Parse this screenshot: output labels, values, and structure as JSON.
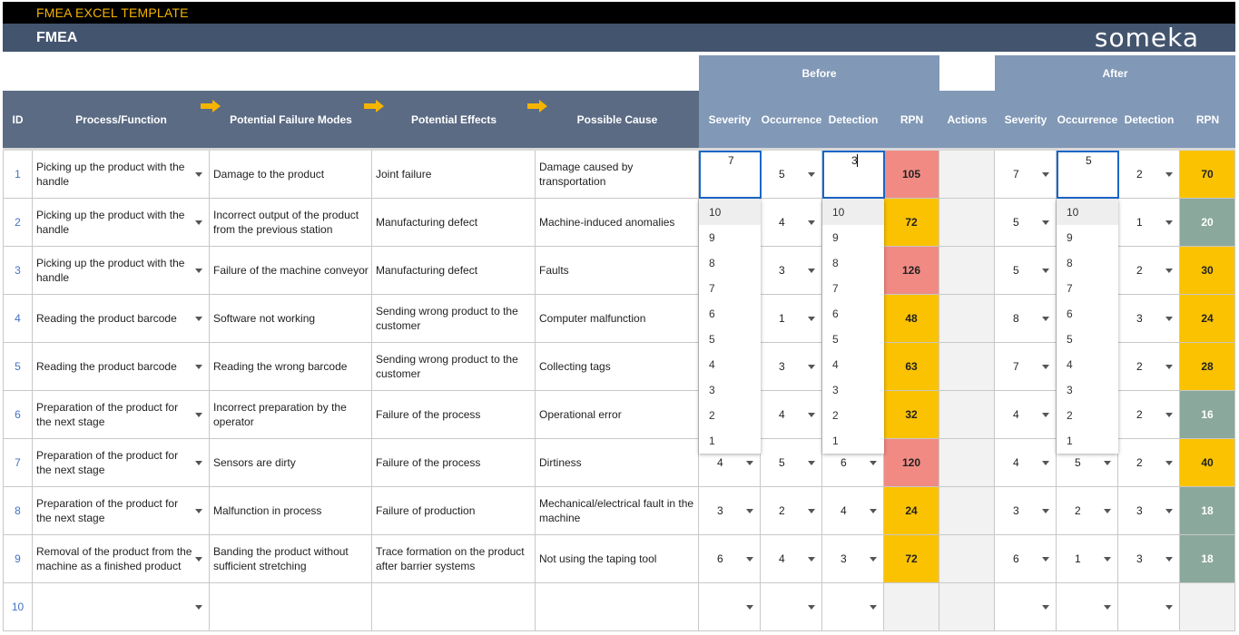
{
  "app": {
    "title": "FMEA EXCEL TEMPLATE",
    "sheet_title": "FMEA",
    "logo": "someka"
  },
  "headers": {
    "group_before": "Before",
    "group_after": "After",
    "id": "ID",
    "process": "Process/Function",
    "failure": "Potential Failure Modes",
    "effects": "Potential Effects",
    "cause": "Possible Cause",
    "severity": "Severity",
    "occurrence": "Occurrence",
    "detection": "Detection",
    "rpn": "RPN",
    "actions": "Actions"
  },
  "colors": {
    "rpn_red": "#f08a83",
    "rpn_yellow": "#fac200",
    "rpn_green": "#8aa89b",
    "header_dark": "#5b6b84",
    "header_light": "#8198b6"
  },
  "icons": {
    "arrow": "arrow-right-icon",
    "dropdown": "chevron-down-icon"
  },
  "rows": [
    {
      "id": "1",
      "process": "Picking up the product with the handle",
      "failure": "Damage to the product",
      "effects": "Joint failure",
      "cause": "Damage caused by transportation",
      "b_sev": "7",
      "b_occ": "5",
      "b_det": "3",
      "b_rpn": "105",
      "b_color": "red",
      "a_sev": "7",
      "a_occ": "5",
      "a_det": "2",
      "a_rpn": "70",
      "a_color": "yellow"
    },
    {
      "id": "2",
      "process": "Picking up the product with the handle",
      "failure": "Incorrect output of the product from the previous station",
      "effects": "Manufacturing defect",
      "cause": "Machine-induced anomalies",
      "b_sev": "",
      "b_occ": "4",
      "b_det": "",
      "b_rpn": "72",
      "b_color": "yellow",
      "a_sev": "5",
      "a_occ": "",
      "a_det": "1",
      "a_rpn": "20",
      "a_color": "green"
    },
    {
      "id": "3",
      "process": "Picking up the product with the handle",
      "failure": "Failure of the machine conveyor",
      "effects": "Manufacturing defect",
      "cause": "Faults",
      "b_sev": "",
      "b_occ": "3",
      "b_det": "",
      "b_rpn": "126",
      "b_color": "red",
      "a_sev": "5",
      "a_occ": "",
      "a_det": "2",
      "a_rpn": "30",
      "a_color": "yellow"
    },
    {
      "id": "4",
      "process": "Reading the product barcode",
      "failure": "Software not working",
      "effects": "Sending wrong product to the customer",
      "cause": "Computer malfunction",
      "b_sev": "",
      "b_occ": "1",
      "b_det": "",
      "b_rpn": "48",
      "b_color": "yellow",
      "a_sev": "8",
      "a_occ": "",
      "a_det": "3",
      "a_rpn": "24",
      "a_color": "yellow"
    },
    {
      "id": "5",
      "process": "Reading the product barcode",
      "failure": "Reading the wrong barcode",
      "effects": "Sending wrong product to the customer",
      "cause": "Collecting tags",
      "b_sev": "",
      "b_occ": "3",
      "b_det": "",
      "b_rpn": "63",
      "b_color": "yellow",
      "a_sev": "7",
      "a_occ": "",
      "a_det": "2",
      "a_rpn": "28",
      "a_color": "yellow"
    },
    {
      "id": "6",
      "process": "Preparation of the product for the next stage",
      "failure": "Incorrect preparation by the operator",
      "effects": "Failure of the process",
      "cause": "Operational error",
      "b_sev": "",
      "b_occ": "4",
      "b_det": "",
      "b_rpn": "32",
      "b_color": "yellow",
      "a_sev": "4",
      "a_occ": "",
      "a_det": "2",
      "a_rpn": "16",
      "a_color": "green"
    },
    {
      "id": "7",
      "process": "Preparation of the product for the next stage",
      "failure": "Sensors are dirty",
      "effects": "Failure of the process",
      "cause": "Dirtiness",
      "b_sev": "4",
      "b_occ": "5",
      "b_det": "6",
      "b_rpn": "120",
      "b_color": "red",
      "a_sev": "4",
      "a_occ": "5",
      "a_det": "2",
      "a_rpn": "40",
      "a_color": "yellow"
    },
    {
      "id": "8",
      "process": "Preparation of the product for the next stage",
      "failure": "Malfunction in process",
      "effects": "Failure of production",
      "cause": "Mechanical/electrical fault in the machine",
      "b_sev": "3",
      "b_occ": "2",
      "b_det": "4",
      "b_rpn": "24",
      "b_color": "yellow",
      "a_sev": "3",
      "a_occ": "2",
      "a_det": "3",
      "a_rpn": "18",
      "a_color": "green"
    },
    {
      "id": "9",
      "process": "Removal of the product from the machine as a finished product",
      "failure": "Banding the product without sufficient stretching",
      "effects": "Trace formation on the product after barrier systems",
      "cause": "Not using the taping tool",
      "b_sev": "6",
      "b_occ": "4",
      "b_det": "3",
      "b_rpn": "72",
      "b_color": "yellow",
      "a_sev": "6",
      "a_occ": "1",
      "a_det": "3",
      "a_rpn": "18",
      "a_color": "green"
    },
    {
      "id": "10",
      "process": "",
      "failure": "",
      "effects": "",
      "cause": "",
      "b_sev": "",
      "b_occ": "",
      "b_det": "",
      "b_rpn": "",
      "b_color": "none",
      "a_sev": "",
      "a_occ": "",
      "a_det": "",
      "a_rpn": "",
      "a_color": "none"
    }
  ],
  "dropdown_options": [
    "10",
    "9",
    "8",
    "7",
    "6",
    "5",
    "4",
    "3",
    "2",
    "1"
  ]
}
